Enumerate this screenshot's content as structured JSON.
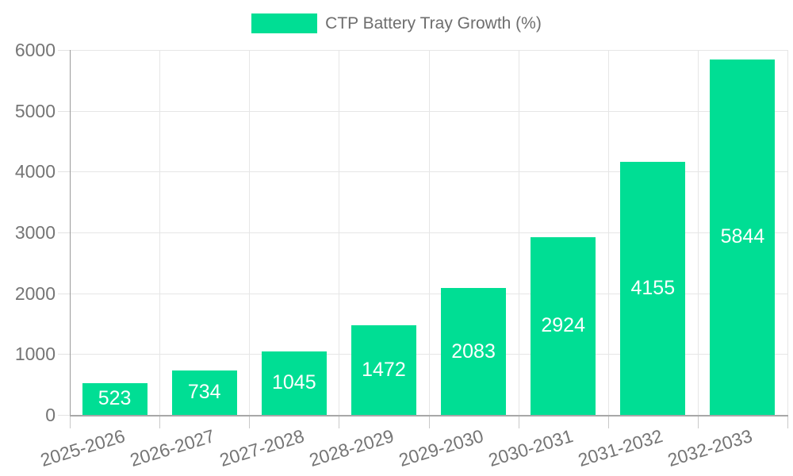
{
  "chart_data": {
    "type": "bar",
    "title": "CTP Battery Tray Growth (%)",
    "series_name": "CTP Battery Tray Growth (%)",
    "categories": [
      "2025-2026",
      "2026-2027",
      "2027-2028",
      "2028-2029",
      "2029-2030",
      "2030-2031",
      "2031-2032",
      "2032-2033"
    ],
    "values": [
      523,
      734,
      1045,
      1472,
      2083,
      2924,
      4155,
      5844
    ],
    "value_labels": [
      "523",
      "734",
      "1045",
      "1472",
      "2083",
      "2924",
      "4155",
      "5844"
    ],
    "value_label_position": "inside-center",
    "xlabel": "",
    "ylabel": "",
    "ylim": [
      0,
      6000
    ],
    "yticks": [
      0,
      1000,
      2000,
      3000,
      4000,
      5000,
      6000
    ],
    "ytick_labels": [
      "0",
      "1000",
      "2000",
      "3000",
      "4000",
      "5000",
      "6000"
    ],
    "grid": true,
    "legend_position": "top-center",
    "colors": {
      "bar": "#00DE94",
      "value_label": "#ffffff",
      "grid_line": "#e6e6e6",
      "axis_line": "#a0a0a0",
      "tick_text": "#757575",
      "legend_text": "#6e6e6e",
      "background": "#ffffff"
    }
  }
}
